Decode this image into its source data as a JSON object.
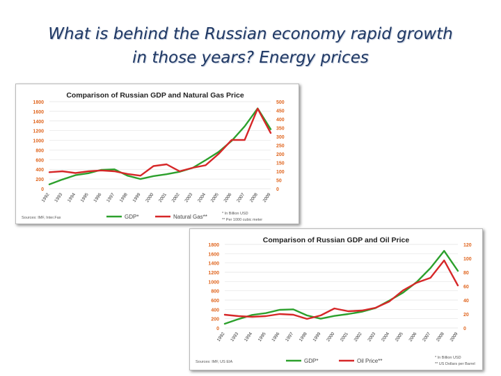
{
  "slide": {
    "title_line1": "What is behind the Russian economy rapid growth",
    "title_line2": "in those years? Energy prices"
  },
  "colors": {
    "gdp": "#2ca02c",
    "energy": "#d62728",
    "left_axis": "#e0651e",
    "right_axis": "#e0651e"
  },
  "chart_data": [
    {
      "type": "line",
      "title": "Comparison of Russian GDP and Natural Gas Price",
      "categories": [
        "1992",
        "1993",
        "1994",
        "1995",
        "1996",
        "1997",
        "1998",
        "1999",
        "2000",
        "2001",
        "2002",
        "2003",
        "2004",
        "2005",
        "2006",
        "2007",
        "2008",
        "2009"
      ],
      "left_ticks": [
        "1800",
        "1600",
        "1400",
        "1200",
        "1000",
        "800",
        "600",
        "400",
        "200",
        "0"
      ],
      "right_ticks": [
        "500",
        "450",
        "400",
        "350",
        "300",
        "250",
        "200",
        "150",
        "100",
        "50",
        "0"
      ],
      "ylim_left": [
        0,
        1800
      ],
      "ylim_right": [
        0,
        500
      ],
      "series": [
        {
          "name": "GDP*",
          "axis": "left",
          "values": [
            90,
            190,
            280,
            320,
            390,
            400,
            270,
            200,
            260,
            300,
            350,
            430,
            590,
            760,
            990,
            1290,
            1660,
            1230
          ]
        },
        {
          "name": "Natural Gas**",
          "axis": "right",
          "values": [
            95,
            100,
            90,
            100,
            105,
            100,
            85,
            75,
            130,
            140,
            100,
            120,
            135,
            200,
            280,
            280,
            460,
            320
          ]
        }
      ],
      "legend": [
        "GDP*",
        "Natural Gas**"
      ],
      "source": "Sources: IMF, Inter.Fax",
      "footnote1": "* In Billion USD",
      "footnote2": "** Per 1000 cubic meter"
    },
    {
      "type": "line",
      "title": "Comparison of Russian GDP and Oil Price",
      "categories": [
        "1992",
        "1993",
        "1994",
        "1995",
        "1996",
        "1997",
        "1998",
        "1999",
        "2000",
        "2001",
        "2002",
        "2003",
        "2004",
        "2005",
        "2006",
        "2007",
        "2008",
        "2009"
      ],
      "left_ticks": [
        "1800",
        "1600",
        "1400",
        "1200",
        "1000",
        "800",
        "600",
        "400",
        "200",
        "0"
      ],
      "right_ticks": [
        "120",
        "100",
        "80",
        "60",
        "40",
        "20",
        "0"
      ],
      "ylim_left": [
        0,
        1800
      ],
      "ylim_right": [
        0,
        120
      ],
      "series": [
        {
          "name": "GDP*",
          "axis": "left",
          "values": [
            90,
            190,
            280,
            320,
            390,
            400,
            270,
            200,
            260,
            300,
            350,
            430,
            590,
            760,
            990,
            1290,
            1660,
            1230
          ]
        },
        {
          "name": "Oil Price**",
          "axis": "right",
          "values": [
            19,
            17,
            16,
            17,
            20,
            19,
            13,
            18,
            28,
            24,
            25,
            29,
            38,
            54,
            65,
            72,
            97,
            61
          ]
        }
      ],
      "legend": [
        "GDP*",
        "Oil Price**"
      ],
      "source": "Sources: IMF, US EIA",
      "footnote1": "* In Billion USD",
      "footnote2": "** US Dollars per Barrel"
    }
  ]
}
